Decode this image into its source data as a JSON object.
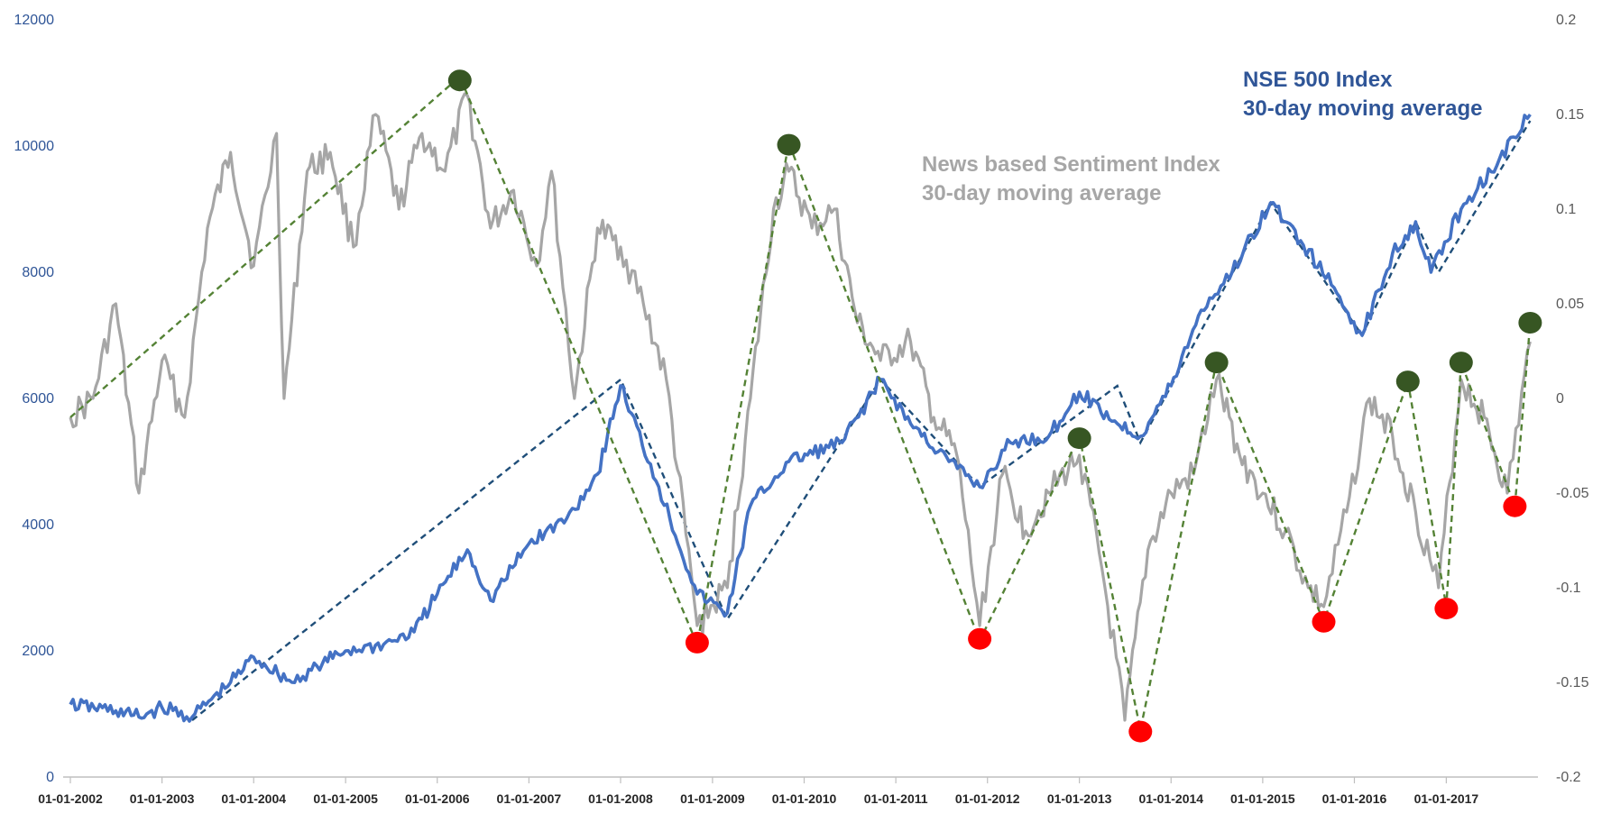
{
  "chart_data": {
    "type": "line",
    "title": "",
    "left_axis": {
      "ylim": [
        0,
        12000
      ],
      "ticks": [
        0,
        2000,
        4000,
        6000,
        8000,
        10000,
        12000
      ],
      "tick_labels": [
        "0",
        "2000",
        "4000",
        "6000",
        "8000",
        "10000",
        "12000"
      ],
      "color": "#2F5597"
    },
    "right_axis": {
      "ylim": [
        -0.2,
        0.2
      ],
      "ticks": [
        -0.2,
        -0.15,
        -0.1,
        -0.05,
        0,
        0.05,
        0.1,
        0.15,
        0.2
      ],
      "tick_labels": [
        "-0.2",
        "-0.15",
        "-0.1",
        "-0.05",
        "0",
        "0.05",
        "0.1",
        "0.15",
        "0.2"
      ],
      "color": "#595959"
    },
    "x_axis": {
      "range": [
        "2002-01-01",
        "2018-01-01"
      ],
      "tick_dates": [
        "2002-01-01",
        "2003-01-01",
        "2004-01-01",
        "2005-01-01",
        "2006-01-01",
        "2007-01-01",
        "2008-01-01",
        "2009-01-01",
        "2010-01-01",
        "2011-01-01",
        "2012-01-01",
        "2013-01-01",
        "2014-01-01",
        "2015-01-01",
        "2016-01-01",
        "2017-01-01"
      ],
      "tick_labels": [
        "01-01-2002",
        "01-01-2003",
        "01-01-2004",
        "01-01-2005",
        "01-01-2006",
        "01-01-2007",
        "01-01-2008",
        "01-01-2009",
        "01-01-2010",
        "01-01-2011",
        "01-01-2012",
        "01-01-2013",
        "01-01-2014",
        "01-01-2015",
        "01-01-2016",
        "01-01-2017"
      ]
    },
    "grid": false,
    "series": [
      {
        "name": "News based Sentiment Index 30-day moving average",
        "axis": "right",
        "color": "#A6A6A6",
        "points": [
          [
            "2002-01-01",
            -0.01
          ],
          [
            "2002-04-01",
            0.0
          ],
          [
            "2002-07-01",
            0.05
          ],
          [
            "2002-10-01",
            -0.05
          ],
          [
            "2003-01-01",
            0.02
          ],
          [
            "2003-04-01",
            -0.01
          ],
          [
            "2003-07-01",
            0.09
          ],
          [
            "2003-10-01",
            0.13
          ],
          [
            "2004-01-01",
            0.07
          ],
          [
            "2004-04-01",
            0.14
          ],
          [
            "2004-05-01",
            0.0
          ],
          [
            "2004-08-01",
            0.12
          ],
          [
            "2004-11-01",
            0.13
          ],
          [
            "2005-02-01",
            0.08
          ],
          [
            "2005-05-01",
            0.15
          ],
          [
            "2005-08-01",
            0.1
          ],
          [
            "2005-11-01",
            0.14
          ],
          [
            "2006-02-01",
            0.12
          ],
          [
            "2006-05-01",
            0.16
          ],
          [
            "2006-08-01",
            0.09
          ],
          [
            "2006-11-01",
            0.11
          ],
          [
            "2007-02-01",
            0.07
          ],
          [
            "2007-04-01",
            0.12
          ],
          [
            "2007-07-01",
            0.0
          ],
          [
            "2007-10-01",
            0.09
          ],
          [
            "2008-01-01",
            0.08
          ],
          [
            "2008-04-01",
            0.05
          ],
          [
            "2008-07-01",
            0.01
          ],
          [
            "2008-11-01",
            -0.12
          ],
          [
            "2009-03-01",
            -0.1
          ],
          [
            "2009-06-01",
            0.0
          ],
          [
            "2009-09-01",
            0.1
          ],
          [
            "2009-11-01",
            0.12
          ],
          [
            "2010-02-01",
            0.09
          ],
          [
            "2010-05-01",
            0.1
          ],
          [
            "2010-08-01",
            0.04
          ],
          [
            "2010-11-01",
            0.02
          ],
          [
            "2011-03-01",
            0.03
          ],
          [
            "2011-06-01",
            -0.01
          ],
          [
            "2011-09-01",
            -0.03
          ],
          [
            "2011-12-01",
            -0.12
          ],
          [
            "2012-03-01",
            -0.04
          ],
          [
            "2012-06-01",
            -0.07
          ],
          [
            "2012-09-01",
            -0.05
          ],
          [
            "2013-01-01",
            -0.03
          ],
          [
            "2013-04-01",
            -0.09
          ],
          [
            "2013-07-01",
            -0.17
          ],
          [
            "2013-10-01",
            -0.08
          ],
          [
            "2014-01-01",
            -0.05
          ],
          [
            "2014-04-01",
            -0.04
          ],
          [
            "2014-07-01",
            0.01
          ],
          [
            "2014-10-01",
            -0.03
          ],
          [
            "2015-01-01",
            -0.05
          ],
          [
            "2015-04-01",
            -0.07
          ],
          [
            "2015-07-01",
            -0.1
          ],
          [
            "2015-09-01",
            -0.11
          ],
          [
            "2015-12-01",
            -0.06
          ],
          [
            "2016-03-01",
            0.0
          ],
          [
            "2016-06-01",
            -0.02
          ],
          [
            "2016-09-01",
            -0.06
          ],
          [
            "2016-12-01",
            -0.1
          ],
          [
            "2017-03-01",
            0.01
          ],
          [
            "2017-06-01",
            -0.01
          ],
          [
            "2017-09-01",
            -0.05
          ],
          [
            "2017-12-01",
            0.03
          ]
        ]
      },
      {
        "name": "NSE 500 Index 30-day moving average",
        "axis": "left",
        "color": "#4472C4",
        "points": [
          [
            "2002-01-01",
            1150
          ],
          [
            "2002-07-01",
            1050
          ],
          [
            "2002-10-01",
            950
          ],
          [
            "2003-01-01",
            1100
          ],
          [
            "2003-05-01",
            950
          ],
          [
            "2003-10-01",
            1500
          ],
          [
            "2004-01-01",
            1900
          ],
          [
            "2004-06-01",
            1500
          ],
          [
            "2004-10-01",
            1800
          ],
          [
            "2005-01-01",
            2000
          ],
          [
            "2005-06-01",
            2100
          ],
          [
            "2005-10-01",
            2300
          ],
          [
            "2006-01-01",
            2900
          ],
          [
            "2006-05-01",
            3600
          ],
          [
            "2006-08-01",
            2800
          ],
          [
            "2007-01-01",
            3700
          ],
          [
            "2007-06-01",
            4100
          ],
          [
            "2007-10-01",
            4800
          ],
          [
            "2008-01-01",
            6200
          ],
          [
            "2008-06-01",
            4600
          ],
          [
            "2008-11-01",
            2900
          ],
          [
            "2009-03-01",
            2600
          ],
          [
            "2009-06-01",
            4300
          ],
          [
            "2009-11-01",
            5000
          ],
          [
            "2010-06-01",
            5300
          ],
          [
            "2010-11-01",
            6300
          ],
          [
            "2011-03-01",
            5600
          ],
          [
            "2011-08-01",
            5000
          ],
          [
            "2011-12-01",
            4600
          ],
          [
            "2012-04-01",
            5300
          ],
          [
            "2012-09-01",
            5400
          ],
          [
            "2013-01-01",
            6100
          ],
          [
            "2013-06-01",
            5600
          ],
          [
            "2013-09-01",
            5400
          ],
          [
            "2014-01-01",
            6200
          ],
          [
            "2014-05-01",
            7400
          ],
          [
            "2014-09-01",
            8000
          ],
          [
            "2015-02-01",
            9100
          ],
          [
            "2015-06-01",
            8500
          ],
          [
            "2015-10-01",
            7800
          ],
          [
            "2016-02-01",
            7000
          ],
          [
            "2016-06-01",
            8300
          ],
          [
            "2016-09-01",
            8800
          ],
          [
            "2016-11-01",
            8000
          ],
          [
            "2017-03-01",
            9000
          ],
          [
            "2017-08-01",
            9800
          ],
          [
            "2017-12-01",
            10500
          ]
        ]
      }
    ],
    "trend_lines": [
      {
        "axis": "right",
        "color": "#548235",
        "points": [
          [
            "2002-01-01",
            -0.01
          ],
          [
            "2006-04-01",
            0.17
          ],
          [
            "2008-11-01",
            -0.13
          ],
          [
            "2009-11-01",
            0.135
          ],
          [
            "2011-12-01",
            -0.128
          ],
          [
            "2013-01-01",
            -0.02
          ],
          [
            "2013-09-01",
            -0.175
          ],
          [
            "2014-07-01",
            0.019
          ],
          [
            "2015-09-01",
            -0.118
          ],
          [
            "2016-08-01",
            0.009
          ],
          [
            "2017-01-01",
            -0.11
          ],
          [
            "2017-03-01",
            0.019
          ],
          [
            "2017-10-01",
            -0.057
          ],
          [
            "2017-12-01",
            0.04
          ]
        ]
      },
      {
        "axis": "left",
        "color": "#1F4E79",
        "points": [
          [
            "2003-05-01",
            900
          ],
          [
            "2008-01-01",
            6300
          ],
          [
            "2009-03-01",
            2500
          ],
          [
            "2010-11-01",
            6300
          ],
          [
            "2011-12-01",
            4600
          ],
          [
            "2013-06-01",
            6200
          ],
          [
            "2013-09-01",
            5300
          ],
          [
            "2015-02-01",
            9100
          ],
          [
            "2016-02-01",
            7000
          ],
          [
            "2016-09-01",
            8800
          ],
          [
            "2016-12-01",
            8000
          ],
          [
            "2017-12-01",
            10400
          ]
        ]
      }
    ],
    "markers": {
      "peaks": {
        "color": "#375623",
        "points": [
          [
            "2006-04-01",
            0.168
          ],
          [
            "2009-11-01",
            0.134
          ],
          [
            "2013-01-01",
            -0.021
          ],
          [
            "2014-07-01",
            0.019
          ],
          [
            "2016-08-01",
            0.009
          ],
          [
            "2017-03-01",
            0.019
          ],
          [
            "2017-12-01",
            0.04
          ]
        ]
      },
      "troughs": {
        "color": "#FF0000",
        "points": [
          [
            "2008-11-01",
            -0.129
          ],
          [
            "2011-12-01",
            -0.127
          ],
          [
            "2013-09-01",
            -0.176
          ],
          [
            "2015-09-01",
            -0.118
          ],
          [
            "2017-01-01",
            -0.111
          ],
          [
            "2017-10-01",
            -0.057
          ]
        ]
      }
    },
    "legend": [
      {
        "lines": [
          "NSE 500 Index",
          "30-day moving average"
        ],
        "color": "#2F5597",
        "placement": "top-right"
      },
      {
        "lines": [
          "News based Sentiment Index",
          "30-day moving average"
        ],
        "color": "#A6A6A6",
        "placement": "top-center"
      }
    ]
  }
}
